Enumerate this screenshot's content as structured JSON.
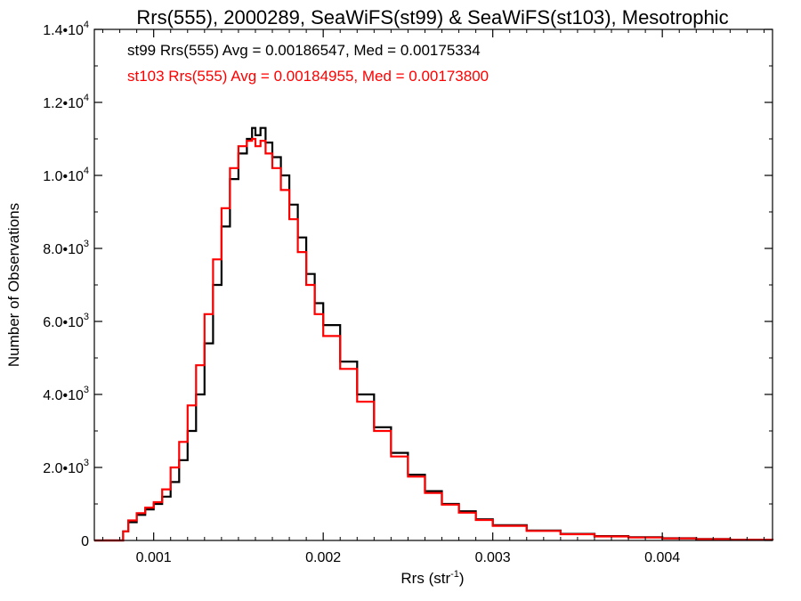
{
  "chart_data": {
    "type": "line",
    "step": true,
    "title": "Rrs(555), 2000289, SeaWiFS(st99) & SeaWiFS(st103), Mesotrophic",
    "xlabel": "Rrs (str",
    "xlabel_sup": "-1",
    "xlabel_end": ")",
    "ylabel": "Number of Observations",
    "xlim": [
      0.00065,
      0.00465
    ],
    "ylim": [
      0,
      14000
    ],
    "x_ticks": [
      {
        "value": 0.001,
        "label": "0.001"
      },
      {
        "value": 0.002,
        "label": "0.002"
      },
      {
        "value": 0.003,
        "label": "0.003"
      },
      {
        "value": 0.004,
        "label": "0.004"
      }
    ],
    "y_ticks": [
      {
        "value": 0,
        "mant": "0",
        "exp": ""
      },
      {
        "value": 2000,
        "mant": "2.0•10",
        "exp": "3"
      },
      {
        "value": 4000,
        "mant": "4.0•10",
        "exp": "3"
      },
      {
        "value": 6000,
        "mant": "6.0•10",
        "exp": "3"
      },
      {
        "value": 8000,
        "mant": "8.0•10",
        "exp": "3"
      },
      {
        "value": 10000,
        "mant": "1.0•10",
        "exp": "4"
      },
      {
        "value": 12000,
        "mant": "1.2•10",
        "exp": "4"
      },
      {
        "value": 14000,
        "mant": "1.4•10",
        "exp": "4"
      }
    ],
    "legend": [
      {
        "text": "st99 Rrs(555) Avg = 0.00186547, Med = 0.00175334",
        "color": "#000000"
      },
      {
        "text": "st103 Rrs(555) Avg = 0.00184955, Med = 0.00173800",
        "color": "#ff0000"
      }
    ],
    "legend_position": "top-left",
    "series": [
      {
        "color": "#000000",
        "x": [
          0.00065,
          0.0008,
          0.00082,
          0.00085,
          0.0009,
          0.00095,
          0.001,
          0.00105,
          0.0011,
          0.00115,
          0.0012,
          0.00125,
          0.0013,
          0.00135,
          0.0014,
          0.00145,
          0.0015,
          0.00155,
          0.00158,
          0.0016,
          0.00163,
          0.00166,
          0.0017,
          0.00175,
          0.0018,
          0.00185,
          0.0019,
          0.00195,
          0.002,
          0.0021,
          0.0022,
          0.0023,
          0.0024,
          0.0025,
          0.0026,
          0.0027,
          0.0028,
          0.0029,
          0.003,
          0.0032,
          0.0034,
          0.0036,
          0.0038,
          0.004,
          0.0042,
          0.0044,
          0.00465
        ],
        "y": [
          0,
          0,
          250,
          500,
          700,
          850,
          1000,
          1200,
          1600,
          2200,
          3000,
          4000,
          5400,
          7000,
          8600,
          9900,
          10600,
          11000,
          11300,
          11100,
          11300,
          10900,
          10500,
          10000,
          9200,
          8300,
          7300,
          6500,
          5900,
          4900,
          4000,
          3100,
          2400,
          1800,
          1350,
          1000,
          800,
          580,
          420,
          270,
          180,
          120,
          90,
          60,
          40,
          20,
          10
        ]
      },
      {
        "color": "#ff0000",
        "x": [
          0.00065,
          0.0008,
          0.00082,
          0.00085,
          0.0009,
          0.00095,
          0.001,
          0.00105,
          0.0011,
          0.00115,
          0.0012,
          0.00125,
          0.0013,
          0.00135,
          0.0014,
          0.00145,
          0.0015,
          0.00155,
          0.00158,
          0.0016,
          0.00163,
          0.00166,
          0.0017,
          0.00175,
          0.0018,
          0.00185,
          0.0019,
          0.00195,
          0.002,
          0.0021,
          0.0022,
          0.0023,
          0.0024,
          0.0025,
          0.0026,
          0.0027,
          0.0028,
          0.0029,
          0.003,
          0.0032,
          0.0034,
          0.0036,
          0.0038,
          0.004,
          0.0042,
          0.0044,
          0.00465
        ],
        "y": [
          0,
          0,
          250,
          550,
          750,
          900,
          1050,
          1400,
          2000,
          2700,
          3700,
          4800,
          6200,
          7700,
          9100,
          10200,
          10800,
          10950,
          11000,
          10800,
          10950,
          10600,
          10200,
          9600,
          8800,
          7900,
          7000,
          6200,
          5600,
          4700,
          3800,
          3000,
          2300,
          1750,
          1300,
          980,
          760,
          560,
          400,
          260,
          170,
          110,
          80,
          55,
          35,
          18,
          8
        ]
      }
    ]
  }
}
